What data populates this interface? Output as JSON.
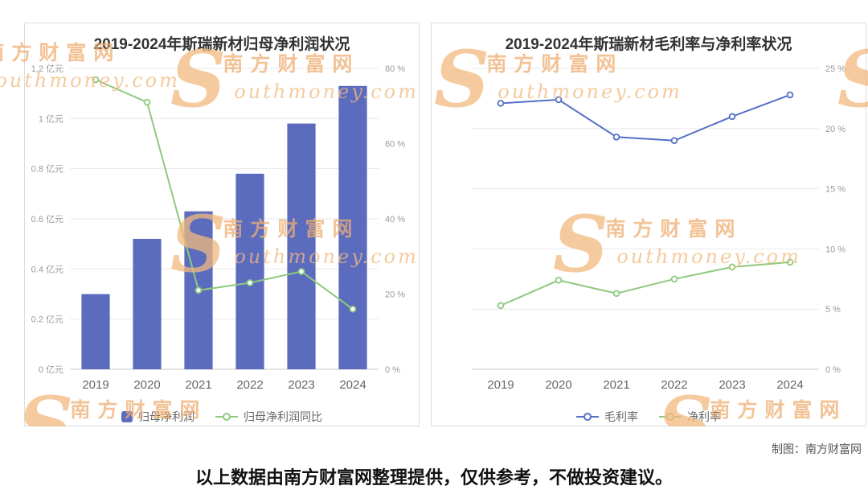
{
  "chart_data": [
    {
      "type": "bar",
      "title": "2019-2024年斯瑞新材归母净利润状况",
      "categories": [
        "2019",
        "2020",
        "2021",
        "2022",
        "2023",
        "2024"
      ],
      "series": [
        {
          "name": "归母净利润",
          "type": "bar",
          "axis": "left",
          "unit": "亿元",
          "color": "#5b6cbf",
          "values": [
            0.3,
            0.52,
            0.63,
            0.78,
            0.98,
            1.13
          ]
        },
        {
          "name": "归母净利润同比",
          "type": "line",
          "axis": "right",
          "unit": "%",
          "color": "#8fc97e",
          "values": [
            77,
            71,
            21,
            23,
            26,
            16
          ]
        }
      ],
      "left_axis": {
        "min": 0,
        "max": 1.2,
        "ticks": [
          "0 亿元",
          "0.2 亿元",
          "0.4 亿元",
          "0.6 亿元",
          "0.8 亿元",
          "1 亿元",
          "1.2 亿元"
        ]
      },
      "right_axis": {
        "min": 0,
        "max": 80,
        "ticks": [
          "0 %",
          "20 %",
          "40 %",
          "60 %",
          "80 %"
        ]
      },
      "grid": true,
      "legend_position": "bottom"
    },
    {
      "type": "line",
      "title": "2019-2024年斯瑞新材毛利率与净利率状况",
      "categories": [
        "2019",
        "2020",
        "2021",
        "2022",
        "2023",
        "2024"
      ],
      "series": [
        {
          "name": "毛利率",
          "type": "line",
          "axis": "right",
          "unit": "%",
          "color": "#5470c6",
          "values": [
            22.1,
            22.4,
            19.3,
            19.0,
            21.0,
            22.8
          ]
        },
        {
          "name": "净利率",
          "type": "line",
          "axis": "right",
          "unit": "%",
          "color": "#8fc97e",
          "values": [
            5.3,
            7.4,
            6.3,
            7.5,
            8.5,
            8.9
          ]
        }
      ],
      "right_axis": {
        "min": 0,
        "max": 25,
        "ticks": [
          "0 %",
          "5 %",
          "10 %",
          "15 %",
          "20 %",
          "25 %"
        ]
      },
      "grid": true,
      "legend_position": "bottom"
    }
  ],
  "watermark": {
    "initial": "S",
    "cn": "南方财富网",
    "en_rest": "outhmoney.com"
  },
  "footer": {
    "credit": "制图：南方财富网",
    "disclaimer": "以上数据由南方财富网整理提供，仅供参考，不做投资建议。"
  }
}
